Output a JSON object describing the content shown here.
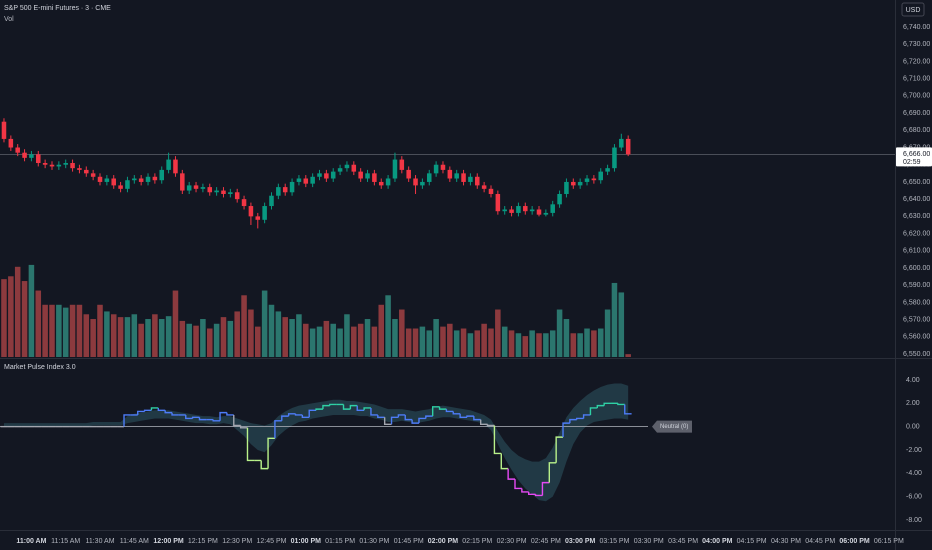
{
  "chart_data": [
    {
      "type": "candlestick",
      "title": "S&P 500 E-mini Futures · 3 · CME",
      "subtitle": "Vol",
      "currency": "USD",
      "up_color": "#089981",
      "down_color": "#f23645",
      "volume_up_color": "#2b766e",
      "volume_down_color": "#8c3a3e",
      "grid": false,
      "xlim": [
        -0.58,
        129.9
      ],
      "xticks": [
        {
          "value": 4,
          "label": "11:00 AM"
        },
        {
          "value": 9,
          "label": "11:15 AM"
        },
        {
          "value": 14,
          "label": "11:30 AM"
        },
        {
          "value": 19,
          "label": "11:45 AM"
        },
        {
          "value": 24,
          "label": "12:00 PM"
        },
        {
          "value": 29,
          "label": "12:15 PM"
        },
        {
          "value": 34,
          "label": "12:30 PM"
        },
        {
          "value": 39,
          "label": "12:45 PM"
        },
        {
          "value": 44,
          "label": "01:00 PM"
        },
        {
          "value": 49,
          "label": "01:15 PM"
        },
        {
          "value": 54,
          "label": "01:30 PM"
        },
        {
          "value": 59,
          "label": "01:45 PM"
        },
        {
          "value": 64,
          "label": "02:00 PM"
        },
        {
          "value": 69,
          "label": "02:15 PM"
        },
        {
          "value": 74,
          "label": "02:30 PM"
        },
        {
          "value": 79,
          "label": "02:45 PM"
        },
        {
          "value": 84,
          "label": "03:00 PM"
        },
        {
          "value": 89,
          "label": "03:15 PM"
        },
        {
          "value": 94,
          "label": "03:30 PM"
        },
        {
          "value": 99,
          "label": "03:45 PM"
        },
        {
          "value": 104,
          "label": "04:00 PM"
        },
        {
          "value": 109,
          "label": "04:15 PM"
        },
        {
          "value": 114,
          "label": "04:30 PM"
        },
        {
          "value": 119,
          "label": "04:45 PM"
        },
        {
          "value": 124,
          "label": "06:00 PM"
        },
        {
          "value": 129,
          "label": "06:15 PM"
        }
      ],
      "xtick_bold": [
        true,
        false,
        false,
        false,
        true,
        false,
        false,
        false,
        true,
        false,
        false,
        false,
        true,
        false,
        false,
        false,
        true,
        false,
        false,
        false,
        true,
        false,
        false,
        false,
        true,
        false
      ],
      "ylim": [
        6548.3,
        6755.7
      ],
      "yticks": [
        {
          "value": 6740,
          "label": "6,740.00"
        },
        {
          "value": 6730,
          "label": "6,730.00"
        },
        {
          "value": 6720,
          "label": "6,720.00"
        },
        {
          "value": 6710,
          "label": "6,710.00"
        },
        {
          "value": 6700,
          "label": "6,700.00"
        },
        {
          "value": 6690,
          "label": "6,690.00"
        },
        {
          "value": 6680,
          "label": "6,680.00"
        },
        {
          "value": 6670,
          "label": "6,670.00"
        },
        {
          "value": 6660,
          "label": "6,660.00"
        },
        {
          "value": 6650,
          "label": "6,650.00"
        },
        {
          "value": 6640,
          "label": "6,640.00"
        },
        {
          "value": 6630,
          "label": "6,630.00"
        },
        {
          "value": 6620,
          "label": "6,620.00"
        },
        {
          "value": 6610,
          "label": "6,610.00"
        },
        {
          "value": 6600,
          "label": "6,600.00"
        },
        {
          "value": 6590,
          "label": "6,590.00"
        },
        {
          "value": 6580,
          "label": "6,580.00"
        },
        {
          "value": 6570,
          "label": "6,570.00"
        },
        {
          "value": 6560,
          "label": "6,560.00"
        },
        {
          "value": 6550,
          "label": "6,550.00"
        }
      ],
      "y2lim": [
        0,
        376
      ],
      "last_price": {
        "value": 6666,
        "label": "6,666.00"
      },
      "countdown": "02:59",
      "open": [
        6685,
        6675,
        6670,
        6667,
        6664,
        6666,
        6661,
        6660,
        6659,
        6660,
        6661,
        6658,
        6657,
        6655,
        6653,
        6650,
        6652,
        6648,
        6646,
        6651,
        6652,
        6650,
        6653,
        6651,
        6657,
        6663,
        6655,
        6645,
        6648,
        6646,
        6647,
        6644,
        6645,
        6643,
        6644,
        6640,
        6636,
        6630,
        6628,
        6636,
        6642,
        6647,
        6644,
        6650,
        6652,
        6649,
        6653,
        6655,
        6652,
        6656,
        6658,
        6660,
        6656,
        6652,
        6655,
        6650,
        6648,
        6652,
        6663,
        6657,
        6652,
        6648,
        6650,
        6655,
        6660,
        6657,
        6652,
        6655,
        6650,
        6653,
        6648,
        6646,
        6643,
        6633,
        6634,
        6632,
        6636,
        6633,
        6634,
        6631,
        6632,
        6637,
        6643,
        6650,
        6648,
        6650,
        6652,
        6651,
        6656,
        6658,
        6670,
        6675
      ],
      "high": [
        6687,
        6677,
        6672,
        6669,
        6668,
        6668,
        6663,
        6662,
        6662,
        6663,
        6663,
        6660,
        6659,
        6657,
        6655,
        6654,
        6654,
        6650,
        6653,
        6654,
        6654,
        6655,
        6655,
        6659,
        6667,
        6665,
        6657,
        6650,
        6650,
        6649,
        6649,
        6647,
        6647,
        6646,
        6646,
        6642,
        6638,
        6632,
        6638,
        6644,
        6649,
        6649,
        6652,
        6654,
        6654,
        6655,
        6657,
        6657,
        6658,
        6660,
        6662,
        6662,
        6658,
        6657,
        6657,
        6652,
        6654,
        6667,
        6665,
        6659,
        6654,
        6652,
        6657,
        6662,
        6662,
        6659,
        6657,
        6657,
        6655,
        6655,
        6650,
        6648,
        6645,
        6636,
        6636,
        6638,
        6638,
        6636,
        6636,
        6634,
        6639,
        6645,
        6652,
        6652,
        6652,
        6654,
        6654,
        6658,
        6660,
        6672,
        6678,
        6677
      ],
      "low": [
        6673,
        6668,
        6665,
        6662,
        6662,
        6659,
        6658,
        6657,
        6657,
        6658,
        6656,
        6655,
        6653,
        6651,
        6648,
        6648,
        6646,
        6644,
        6644,
        6649,
        6648,
        6648,
        6649,
        6649,
        6655,
        6653,
        6643,
        6643,
        6644,
        6644,
        6642,
        6642,
        6641,
        6641,
        6638,
        6634,
        6625,
        6623,
        6626,
        6634,
        6640,
        6642,
        6642,
        6648,
        6647,
        6647,
        6651,
        6650,
        6650,
        6654,
        6656,
        6654,
        6650,
        6650,
        6648,
        6646,
        6646,
        6650,
        6655,
        6650,
        6643,
        6646,
        6648,
        6653,
        6655,
        6650,
        6650,
        6648,
        6648,
        6646,
        6644,
        6641,
        6631,
        6631,
        6630,
        6630,
        6631,
        6631,
        6630,
        6630,
        6630,
        6635,
        6641,
        6646,
        6646,
        6648,
        6649,
        6649,
        6654,
        6656,
        6668,
        6665
      ],
      "close": [
        6675,
        6670,
        6667,
        6664,
        6666,
        6661,
        6660,
        6659,
        6660,
        6661,
        6658,
        6657,
        6655,
        6653,
        6650,
        6652,
        6648,
        6646,
        6651,
        6652,
        6650,
        6653,
        6651,
        6657,
        6663,
        6655,
        6645,
        6648,
        6646,
        6647,
        6644,
        6645,
        6643,
        6644,
        6640,
        6636,
        6630,
        6628,
        6636,
        6642,
        6647,
        6644,
        6650,
        6652,
        6649,
        6653,
        6655,
        6652,
        6656,
        6658,
        6660,
        6656,
        6652,
        6655,
        6650,
        6648,
        6652,
        6663,
        6657,
        6652,
        6648,
        6650,
        6655,
        6660,
        6657,
        6652,
        6655,
        6650,
        6653,
        6648,
        6646,
        6643,
        6633,
        6634,
        6632,
        6636,
        6633,
        6634,
        6631,
        6632,
        6637,
        6643,
        6650,
        6648,
        6650,
        6652,
        6651,
        6656,
        6658,
        6670,
        6675,
        6666
      ],
      "volume": [
        82,
        85,
        95,
        80,
        97,
        70,
        55,
        55,
        55,
        52,
        55,
        55,
        45,
        40,
        55,
        48,
        45,
        42,
        42,
        45,
        35,
        40,
        45,
        40,
        43,
        70,
        38,
        35,
        33,
        40,
        30,
        35,
        42,
        38,
        48,
        65,
        50,
        32,
        70,
        55,
        48,
        42,
        40,
        45,
        35,
        30,
        32,
        38,
        35,
        30,
        45,
        32,
        35,
        40,
        32,
        55,
        65,
        40,
        50,
        30,
        30,
        32,
        28,
        40,
        32,
        35,
        28,
        30,
        25,
        28,
        35,
        30,
        50,
        32,
        28,
        25,
        22,
        28,
        25,
        25,
        28,
        50,
        40,
        25,
        25,
        30,
        28,
        30,
        50,
        78,
        68,
        3
      ]
    },
    {
      "type": "step",
      "title": "Market Pulse Index 3.0",
      "xlim": [
        -0.58,
        129.9
      ],
      "ylim": [
        -8.86,
        5.71
      ],
      "yticks": [
        {
          "value": 4,
          "label": "4.00"
        },
        {
          "value": 2,
          "label": "2.00"
        },
        {
          "value": 0,
          "label": "0.00"
        },
        {
          "value": -2,
          "label": "-2.00"
        },
        {
          "value": -4,
          "label": "-4.00"
        },
        {
          "value": -6,
          "label": "-6.00"
        },
        {
          "value": -8,
          "label": "-8.00"
        }
      ],
      "zero_line": {
        "value": 0,
        "label": "Neutral (0)"
      },
      "band_color": "#2d5662",
      "line_colors": [
        {
          "min": 1.5,
          "color": "#2fd0a5"
        },
        {
          "min": 0.3,
          "color": "#4d7cf7"
        },
        {
          "min": -0.3,
          "color": "#a3a6af"
        },
        {
          "min": -4,
          "color": "#b9f28a"
        },
        {
          "color": "#e649f5"
        }
      ],
      "values": [
        0,
        0,
        0,
        0,
        0,
        0,
        0,
        0,
        0,
        0,
        0,
        0,
        0,
        0,
        0,
        0,
        0,
        0,
        1.0,
        1.0,
        1.3,
        1.4,
        1.6,
        1.4,
        1.2,
        1.0,
        1.0,
        0.7,
        0.8,
        0.6,
        0.6,
        0.5,
        1.2,
        1.0,
        0.1,
        -0.1,
        -2.9,
        -2.9,
        -3.6,
        -1.0,
        0.5,
        0.9,
        1.1,
        1.0,
        0.8,
        1.4,
        1.5,
        1.8,
        1.9,
        1.9,
        1.5,
        1.8,
        1.4,
        1.6,
        1.0,
        0.8,
        0.2,
        0.8,
        1.0,
        0.6,
        0.3,
        0.7,
        0.9,
        1.7,
        1.5,
        1.3,
        1.1,
        0.8,
        0.9,
        0.6,
        0.2,
        0.1,
        -2.3,
        -3.6,
        -4.5,
        -5.3,
        -5.6,
        -5.8,
        -5.9,
        -4.8,
        -3.1,
        -0.9,
        0.3,
        0.6,
        0.7,
        1.0,
        1.6,
        1.8,
        2.0,
        2.0,
        1.9,
        1.1
      ],
      "band_upper": [
        0.3,
        0.3,
        0.3,
        0.3,
        0.3,
        0.3,
        0.3,
        0.3,
        0.3,
        0.3,
        0.3,
        0.3,
        0.3,
        0.4,
        0.4,
        0.4,
        0.4,
        0.4,
        0.9,
        1.1,
        1.2,
        1.3,
        1.4,
        1.4,
        1.4,
        1.3,
        1.2,
        1.1,
        1.0,
        0.9,
        0.9,
        0.8,
        0.9,
        0.9,
        0.7,
        0.5,
        0.3,
        0.2,
        0.1,
        0.3,
        0.9,
        1.3,
        1.6,
        1.8,
        1.9,
        2.0,
        2.1,
        2.2,
        2.3,
        2.3,
        2.2,
        2.2,
        2.1,
        2.0,
        1.9,
        1.7,
        1.5,
        1.5,
        1.5,
        1.4,
        1.3,
        1.4,
        1.5,
        1.7,
        1.8,
        1.7,
        1.6,
        1.5,
        1.4,
        1.2,
        1.0,
        0.6,
        -0.4,
        -1.3,
        -2.0,
        -2.5,
        -2.8,
        -3.0,
        -3.0,
        -2.7,
        -1.8,
        -0.5,
        0.8,
        1.6,
        2.2,
        2.7,
        3.1,
        3.4,
        3.6,
        3.7,
        3.7,
        3.5
      ],
      "band_lower": [
        0,
        0,
        0,
        0,
        0,
        0,
        0,
        0,
        0,
        0,
        0,
        0,
        0,
        0.1,
        0.1,
        0.1,
        0.1,
        0.1,
        0.3,
        0.4,
        0.5,
        0.6,
        0.7,
        0.7,
        0.7,
        0.6,
        0.5,
        0.4,
        0.3,
        0.3,
        0.2,
        0.2,
        0.3,
        0.2,
        -0.3,
        -0.8,
        -1.5,
        -2.0,
        -2.2,
        -1.6,
        -0.8,
        -0.3,
        0.1,
        0.4,
        0.5,
        0.7,
        0.8,
        0.9,
        1.0,
        1.0,
        1.0,
        1.0,
        0.9,
        0.9,
        0.7,
        0.6,
        0.4,
        0.4,
        0.5,
        0.4,
        0.3,
        0.4,
        0.5,
        0.7,
        0.8,
        0.8,
        0.7,
        0.6,
        0.5,
        0.4,
        0.2,
        -0.3,
        -1.5,
        -2.7,
        -3.7,
        -4.6,
        -5.3,
        -5.8,
        -6.3,
        -6.4,
        -6.0,
        -4.8,
        -3.0,
        -1.5,
        -0.5,
        0.1,
        0.4,
        0.5,
        0.6,
        0.7,
        0.7,
        0.6
      ]
    }
  ]
}
